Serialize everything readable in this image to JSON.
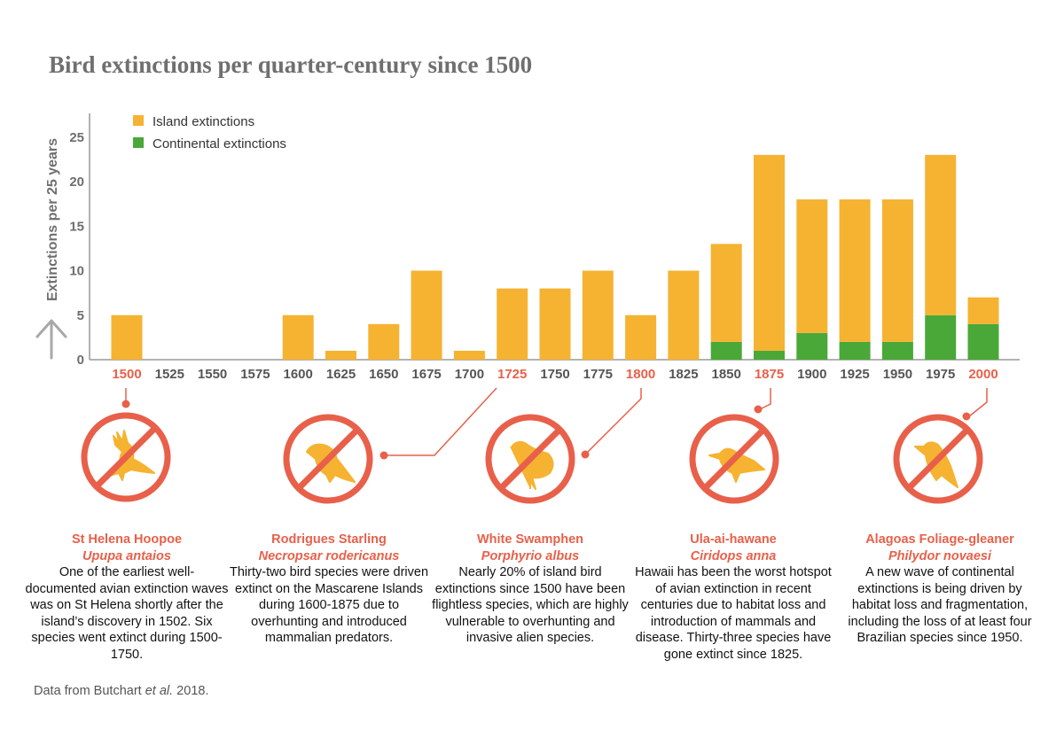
{
  "title": "Bird extinctions per quarter-century since 1500",
  "source": {
    "prefix": "Data from Butchart ",
    "italic": "et al.",
    "suffix": " 2018."
  },
  "colors": {
    "island": "#f5b331",
    "continental": "#4aa838",
    "highlight": "#e8604a",
    "axis": "#999999"
  },
  "chart_data": {
    "type": "bar",
    "stacked": true,
    "title": "Bird extinctions per quarter-century since 1500",
    "ylabel": "Extinctions per 25 years",
    "ylim": [
      0,
      25
    ],
    "yticks": [
      0,
      5,
      10,
      15,
      20,
      25
    ],
    "legend_position": "top-left",
    "categories": [
      "1500",
      "1525",
      "1550",
      "1575",
      "1600",
      "1625",
      "1650",
      "1675",
      "1700",
      "1725",
      "1750",
      "1775",
      "1800",
      "1825",
      "1850",
      "1875",
      "1900",
      "1925",
      "1950",
      "1975",
      "2000"
    ],
    "highlighted_categories": [
      "1500",
      "1725",
      "1800",
      "1875",
      "2000"
    ],
    "series": [
      {
        "name": "Island extinctions",
        "values": [
          5,
          0,
          0,
          0,
          5,
          1,
          4,
          10,
          1,
          8,
          8,
          10,
          5,
          10,
          11,
          22,
          15,
          16,
          16,
          18,
          3
        ]
      },
      {
        "name": "Continental extinctions",
        "values": [
          0,
          0,
          0,
          0,
          0,
          0,
          0,
          0,
          0,
          0,
          0,
          0,
          0,
          0,
          2,
          1,
          3,
          2,
          2,
          5,
          4
        ]
      }
    ]
  },
  "cards": [
    {
      "name": "St Helena Hoopoe",
      "sci": "Upupa antaios",
      "desc": "One of the earliest well-documented avian extinction waves was on St Helena shortly after the island’s discovery in 1502. Six species went extinct during 1500-1750.",
      "icon": "hoopoe-icon"
    },
    {
      "name": "Rodrigues Starling",
      "sci": "Necropsar rodericanus",
      "desc": "Thirty-two bird species were driven extinct on the Mascarene Islands during 1600-1875 due to overhunting and introduced mammalian predators.",
      "icon": "starling-icon"
    },
    {
      "name": "White Swamphen",
      "sci": "Porphyrio albus",
      "desc": "Nearly 20% of island bird extinctions since 1500 have been flightless species, which are highly vulnerable to overhunting and invasive alien species.",
      "icon": "swamphen-icon"
    },
    {
      "name": "Ula-ai-hawane",
      "sci": "Ciridops anna",
      "desc": "Hawaii has been the worst hotspot of avian extinction in recent centuries due to habitat loss and introduction of mammals and disease. Thirty-three species have gone extinct since 1825.",
      "icon": "finch-icon"
    },
    {
      "name": "Alagoas Foliage-gleaner",
      "sci": "Philydor novaesi",
      "desc": "A new wave of continental extinctions is being driven by habitat loss and fragmentation, including the loss of at least four Brazilian species since 1950.",
      "icon": "foliage-gleaner-icon"
    }
  ]
}
